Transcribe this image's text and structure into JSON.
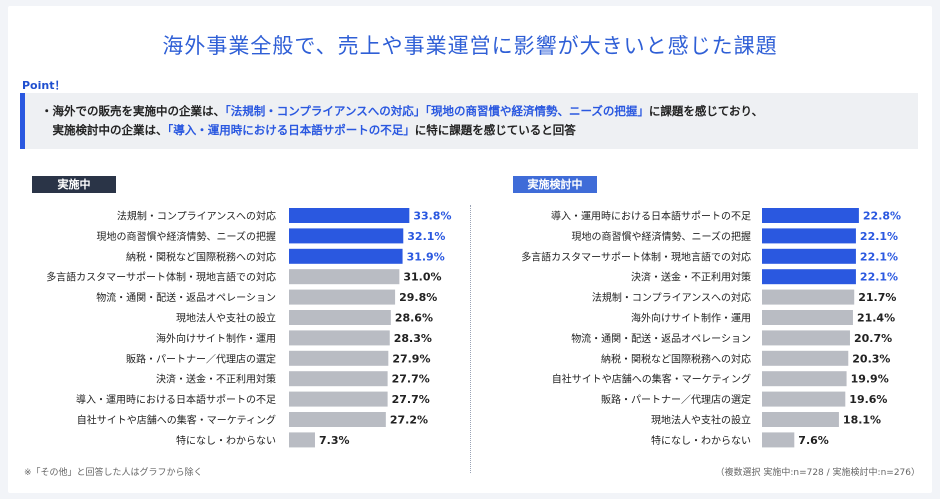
{
  "title": "海外事業全般で、売上や事業運営に影響が大きいと感じた課題",
  "point": {
    "label": "Point！",
    "line1_a": "・海外での販売を実施中の企業は、",
    "line1_b": "「法規制・コンプライアンスへの対応」「現地の商習慣や経済情勢、ニーズの把握」",
    "line1_c": "に課題を感じており、",
    "line2_a": "　実施検討中の企業は、",
    "line2_b": "「導入・運用時における日本語サポートの不足」",
    "line2_c": "に特に課題を感じていると回答"
  },
  "footnote_left": "※「その他」と回答した人はグラフから除く",
  "footnote_right": "（複数選択 実施中:n=728 / 実施検討中:n=276）",
  "colors": {
    "highlight": "#2a58e0",
    "normal": "#b9bcc3",
    "highlight_text": "#2a58e0"
  },
  "chart_data": [
    {
      "type": "bar",
      "title": "実施中",
      "categories": [
        "法規制・コンプライアンスへの対応",
        "現地の商習慣や経済情勢、ニーズの把握",
        "納税・関税など国際税務への対応",
        "多言語カスタマーサポート体制・現地言語での対応",
        "物流・通関・配送・返品オペレーション",
        "現地法人や支社の設立",
        "海外向けサイト制作・運用",
        "販路・パートナー／代理店の選定",
        "決済・送金・不正利用対策",
        "導入・運用時における日本語サポートの不足",
        "自社サイトや店舗への集客・マーケティング",
        "特になし・わからない"
      ],
      "values": [
        33.8,
        32.1,
        31.9,
        31.0,
        29.8,
        28.6,
        28.3,
        27.9,
        27.7,
        27.7,
        27.2,
        7.3
      ],
      "labels": [
        "33.8%",
        "32.1%",
        "31.9%",
        "31.0%",
        "29.8%",
        "28.6%",
        "28.3%",
        "27.9%",
        "27.7%",
        "27.7%",
        "27.2%",
        "7.3%"
      ],
      "highlight_count": 3
    },
    {
      "type": "bar",
      "title": "実施検討中",
      "categories": [
        "導入・運用時における日本語サポートの不足",
        "現地の商習慣や経済情勢、ニーズの把握",
        "多言語カスタマーサポート体制・現地言語での対応",
        "決済・送金・不正利用対策",
        "法規制・コンプライアンスへの対応",
        "海外向けサイト制作・運用",
        "物流・通関・配送・返品オペレーション",
        "納税・関税など国際税務への対応",
        "自社サイトや店舗への集客・マーケティング",
        "販路・パートナー／代理店の選定",
        "現地法人や支社の設立",
        "特になし・わからない"
      ],
      "values": [
        22.8,
        22.1,
        22.1,
        22.1,
        21.7,
        21.4,
        20.7,
        20.3,
        19.9,
        19.6,
        18.1,
        7.6
      ],
      "labels": [
        "22.8%",
        "22.1%",
        "22.1%",
        "22.1%",
        "21.7%",
        "21.4%",
        "20.7%",
        "20.3%",
        "19.9%",
        "19.6%",
        "18.1%",
        "7.6%"
      ],
      "highlight_count": 4
    }
  ]
}
